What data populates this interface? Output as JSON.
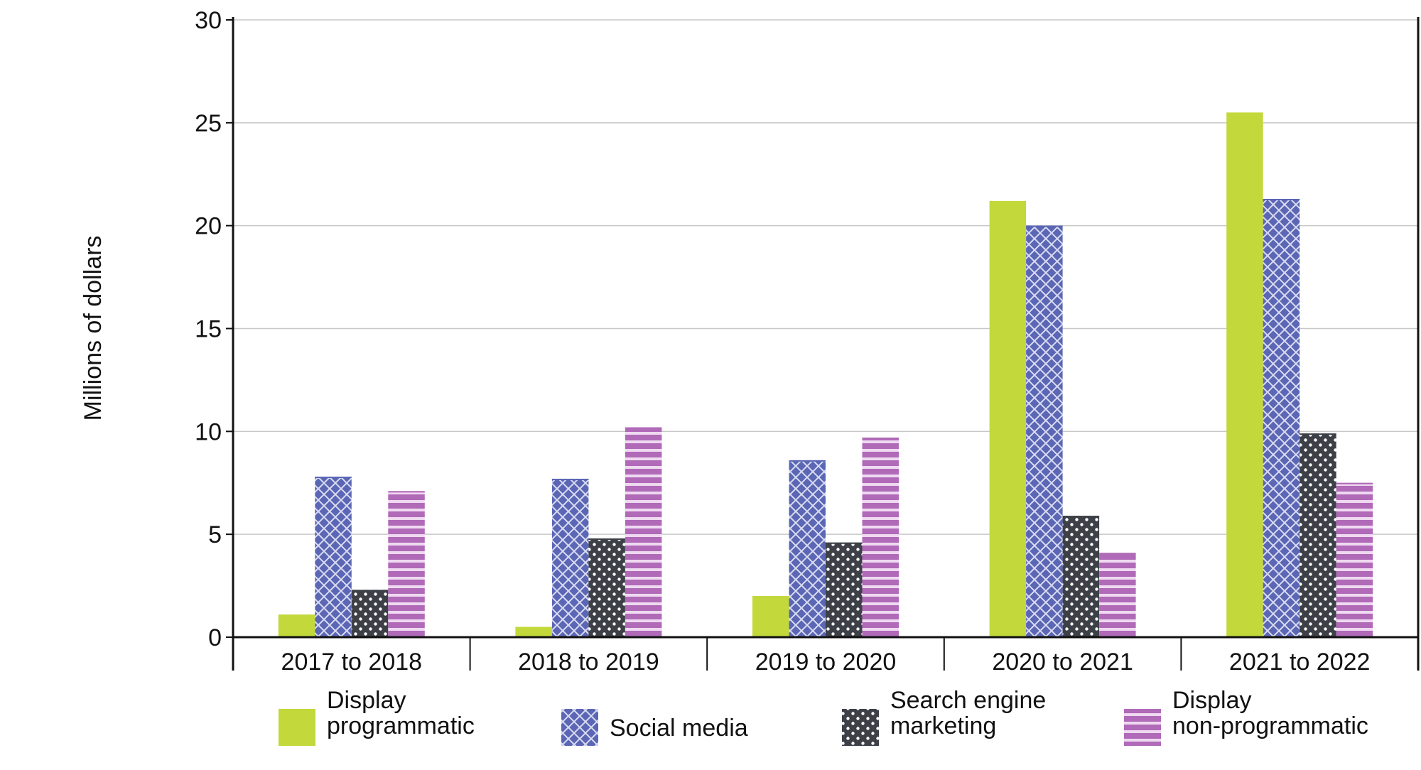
{
  "chart_data": {
    "type": "bar",
    "title": "",
    "xlabel": "",
    "ylabel": "Millions of dollars",
    "ylim": [
      0,
      30
    ],
    "yticks": [
      "0",
      "5",
      "10",
      "15",
      "20",
      "25",
      "30"
    ],
    "grid": true,
    "legend_position": "bottom",
    "categories": [
      "2017 to 2018",
      "2018 to 2019",
      "2019 to 2020",
      "2020 to 2021",
      "2021 to 2022"
    ],
    "series": [
      {
        "name": "Display programmatic",
        "legend_lines": [
          "Display",
          "programmatic"
        ],
        "color": "#c2d83b",
        "pattern": "solid",
        "values": [
          1.1,
          0.5,
          2.0,
          21.2,
          25.5
        ]
      },
      {
        "name": "Social media",
        "legend_lines": [
          "Social media"
        ],
        "color": "#5b66b5",
        "pattern": "crosshatch",
        "values": [
          7.8,
          7.7,
          8.6,
          20.0,
          21.3
        ]
      },
      {
        "name": "Search engine marketing",
        "legend_lines": [
          "Search engine",
          "marketing"
        ],
        "color": "#3d4147",
        "pattern": "dots",
        "values": [
          2.3,
          4.8,
          4.6,
          5.9,
          9.9
        ]
      },
      {
        "name": "Display non-programmatic",
        "legend_lines": [
          "Display",
          "non-programmatic"
        ],
        "color": "#b06ab8",
        "pattern": "stripes",
        "values": [
          7.1,
          10.2,
          9.7,
          4.1,
          7.5
        ]
      }
    ]
  }
}
